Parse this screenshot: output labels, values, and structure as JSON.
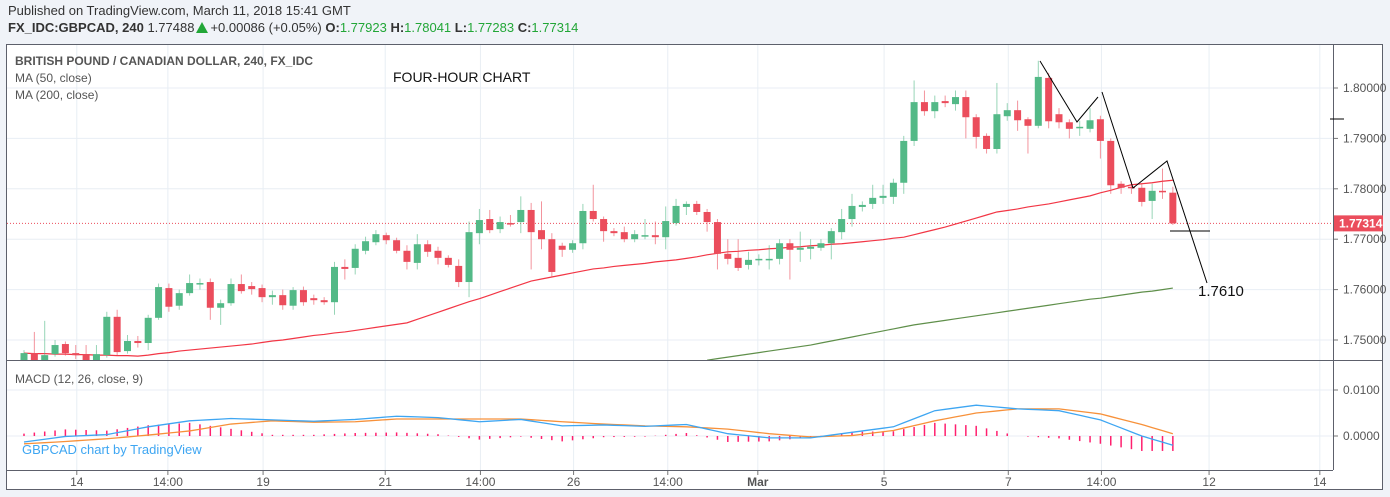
{
  "header": {
    "published": "Published on TradingView.com, March 11, 2018 15:41 GMT",
    "symbol": "FX_IDC:GBPCAD, 240",
    "last": "1.77488",
    "change": "+0.00086 (+0.05%)",
    "o_label": "O:",
    "o": "1.77923",
    "h_label": "H:",
    "h": "1.78041",
    "l_label": "L:",
    "l": "1.77283",
    "c_label": "C:",
    "c": "1.77314",
    "change_direction_icon": "triangle-up-icon"
  },
  "legend": {
    "title": "BRITISH POUND / CANADIAN DOLLAR, 240, FX_IDC",
    "ma50": "MA (50, close)",
    "ma200": "MA (200, close)",
    "macd": "MACD (12, 26, close, 9)"
  },
  "annotation": {
    "note": "FOUR-HOUR CHART",
    "target": "1.7610"
  },
  "watermark": "GBPCAD chart by TradingView",
  "colors": {
    "up": "#53b987",
    "down": "#eb4d5c",
    "ma50": "#f23645",
    "ma200": "#5f8f4a",
    "macd": "#3ea6f2",
    "signal": "#f7913a",
    "histogram": "#ff1f6e",
    "last_price": "#eb4d5c",
    "change": "#22a637"
  },
  "chart_data": {
    "type": "candlestick",
    "price_axis": {
      "ticks": [
        "1.80000",
        "1.79000",
        "1.78000",
        "1.77000",
        "1.76000",
        "1.75000"
      ],
      "range": [
        1.7455,
        1.8085
      ]
    },
    "last_price_label": "1.77314",
    "macd_axis": {
      "ticks": [
        "0.0100",
        "0.0000"
      ]
    },
    "x_ticks": [
      {
        "label": "14",
        "bold": false
      },
      {
        "label": "14:00",
        "bold": false
      },
      {
        "label": "19",
        "bold": false
      },
      {
        "label": "21",
        "bold": false
      },
      {
        "label": "14:00",
        "bold": false
      },
      {
        "label": "26",
        "bold": false
      },
      {
        "label": "14:00",
        "bold": false
      },
      {
        "label": "Mar",
        "bold": true
      },
      {
        "label": "5",
        "bold": false
      },
      {
        "label": "7",
        "bold": false
      },
      {
        "label": "14:00",
        "bold": false
      },
      {
        "label": "12",
        "bold": false
      },
      {
        "label": "14",
        "bold": false
      }
    ],
    "ohlc": [
      [
        1.746,
        1.748,
        1.7455,
        1.7474
      ],
      [
        1.7474,
        1.7516,
        1.7455,
        1.746
      ],
      [
        1.746,
        1.7538,
        1.7455,
        1.747
      ],
      [
        1.7472,
        1.75,
        1.7467,
        1.749
      ],
      [
        1.7492,
        1.7497,
        1.7469,
        1.7474
      ],
      [
        1.7474,
        1.749,
        1.7462,
        1.747
      ],
      [
        1.7472,
        1.749,
        1.7455,
        1.746
      ],
      [
        1.746,
        1.749,
        1.7455,
        1.7472
      ],
      [
        1.747,
        1.7556,
        1.7465,
        1.7546
      ],
      [
        1.7546,
        1.756,
        1.747,
        1.7476
      ],
      [
        1.7478,
        1.751,
        1.7473,
        1.7498
      ],
      [
        1.7498,
        1.7508,
        1.7485,
        1.7494
      ],
      [
        1.7494,
        1.755,
        1.748,
        1.7544
      ],
      [
        1.7544,
        1.7612,
        1.754,
        1.7605
      ],
      [
        1.7603,
        1.7612,
        1.7556,
        1.7566
      ],
      [
        1.7568,
        1.76,
        1.756,
        1.7593
      ],
      [
        1.7593,
        1.763,
        1.7588,
        1.7613
      ],
      [
        1.7611,
        1.7622,
        1.76,
        1.7613
      ],
      [
        1.7615,
        1.7622,
        1.754,
        1.7564
      ],
      [
        1.7564,
        1.758,
        1.753,
        1.7573
      ],
      [
        1.7573,
        1.7622,
        1.7568,
        1.7611
      ],
      [
        1.7611,
        1.763,
        1.7592,
        1.7597
      ],
      [
        1.7607,
        1.7615,
        1.759,
        1.7601
      ],
      [
        1.7603,
        1.761,
        1.7575,
        1.7585
      ],
      [
        1.7585,
        1.7598,
        1.757,
        1.7589
      ],
      [
        1.7589,
        1.76,
        1.756,
        1.7569
      ],
      [
        1.7568,
        1.7605,
        1.756,
        1.7599
      ],
      [
        1.7599,
        1.7606,
        1.7568,
        1.7575
      ],
      [
        1.7583,
        1.759,
        1.757,
        1.7579
      ],
      [
        1.7579,
        1.7585,
        1.757,
        1.7575
      ],
      [
        1.7575,
        1.7655,
        1.755,
        1.7645
      ],
      [
        1.7645,
        1.766,
        1.762,
        1.7641
      ],
      [
        1.7643,
        1.769,
        1.763,
        1.7681
      ],
      [
        1.7677,
        1.7705,
        1.767,
        1.7696
      ],
      [
        1.7694,
        1.7718,
        1.7688,
        1.771
      ],
      [
        1.7708,
        1.7713,
        1.769,
        1.7698
      ],
      [
        1.7698,
        1.7703,
        1.7672,
        1.7677
      ],
      [
        1.7677,
        1.7688,
        1.764,
        1.7655
      ],
      [
        1.7653,
        1.771,
        1.764,
        1.769
      ],
      [
        1.769,
        1.7698,
        1.7665,
        1.7675
      ],
      [
        1.7677,
        1.7685,
        1.765,
        1.7663
      ],
      [
        1.7663,
        1.7668,
        1.7644,
        1.7649
      ],
      [
        1.7647,
        1.766,
        1.7605,
        1.7615
      ],
      [
        1.7615,
        1.7735,
        1.7585,
        1.7714
      ],
      [
        1.7712,
        1.776,
        1.769,
        1.7738
      ],
      [
        1.774,
        1.7758,
        1.7712,
        1.7718
      ],
      [
        1.772,
        1.7745,
        1.7712,
        1.7734
      ],
      [
        1.7732,
        1.7748,
        1.7725,
        1.773
      ],
      [
        1.7734,
        1.7785,
        1.7712,
        1.7758
      ],
      [
        1.7758,
        1.7772,
        1.764,
        1.7714
      ],
      [
        1.7718,
        1.7775,
        1.768,
        1.77
      ],
      [
        1.77,
        1.7712,
        1.7625,
        1.7635
      ],
      [
        1.7687,
        1.7693,
        1.7665,
        1.7679
      ],
      [
        1.7679,
        1.7698,
        1.7673,
        1.7692
      ],
      [
        1.7692,
        1.777,
        1.768,
        1.7756
      ],
      [
        1.7756,
        1.7808,
        1.7735,
        1.774
      ],
      [
        1.774,
        1.7745,
        1.7695,
        1.7716
      ],
      [
        1.7716,
        1.7722,
        1.7706,
        1.7712
      ],
      [
        1.7714,
        1.7725,
        1.7694,
        1.77
      ],
      [
        1.77,
        1.7718,
        1.7694,
        1.771
      ],
      [
        1.7706,
        1.774,
        1.77,
        1.7708
      ],
      [
        1.7708,
        1.7735,
        1.769,
        1.7704
      ],
      [
        1.7704,
        1.7765,
        1.768,
        1.7736
      ],
      [
        1.7732,
        1.778,
        1.7727,
        1.7766
      ],
      [
        1.7764,
        1.7775,
        1.7748,
        1.777
      ],
      [
        1.777,
        1.7776,
        1.7748,
        1.7754
      ],
      [
        1.7754,
        1.776,
        1.7715,
        1.7734
      ],
      [
        1.7734,
        1.774,
        1.764,
        1.7671
      ],
      [
        1.7671,
        1.77,
        1.765,
        1.7661
      ],
      [
        1.7663,
        1.77,
        1.7637,
        1.7643
      ],
      [
        1.7649,
        1.7675,
        1.764,
        1.7659
      ],
      [
        1.7659,
        1.767,
        1.7648,
        1.7661
      ],
      [
        1.7659,
        1.7688,
        1.764,
        1.7661
      ],
      [
        1.7661,
        1.77,
        1.765,
        1.7692
      ],
      [
        1.7692,
        1.77,
        1.762,
        1.7679
      ],
      [
        1.7679,
        1.7715,
        1.7655,
        1.7683
      ],
      [
        1.7681,
        1.77,
        1.766,
        1.7685
      ],
      [
        1.7683,
        1.77,
        1.7677,
        1.7692
      ],
      [
        1.7692,
        1.7722,
        1.766,
        1.7716
      ],
      [
        1.7714,
        1.776,
        1.77,
        1.774
      ],
      [
        1.774,
        1.779,
        1.7725,
        1.7766
      ],
      [
        1.7764,
        1.7775,
        1.7755,
        1.7768
      ],
      [
        1.777,
        1.7808,
        1.776,
        1.7782
      ],
      [
        1.7782,
        1.7808,
        1.777,
        1.7786
      ],
      [
        1.7784,
        1.782,
        1.777,
        1.7812
      ],
      [
        1.7812,
        1.7905,
        1.779,
        1.7895
      ],
      [
        1.7895,
        1.8015,
        1.7885,
        1.7972
      ],
      [
        1.7972,
        1.7995,
        1.7945,
        1.7954
      ],
      [
        1.7954,
        1.7985,
        1.794,
        1.7972
      ],
      [
        1.7974,
        1.7985,
        1.7962,
        1.797
      ],
      [
        1.7968,
        1.7995,
        1.7955,
        1.7982
      ],
      [
        1.7982,
        1.7995,
        1.79,
        1.7942
      ],
      [
        1.7942,
        1.7948,
        1.788,
        1.7903
      ],
      [
        1.7905,
        1.791,
        1.787,
        1.7879
      ],
      [
        1.7879,
        1.801,
        1.787,
        1.7948
      ],
      [
        1.7944,
        1.797,
        1.7935,
        1.7956
      ],
      [
        1.7956,
        1.7975,
        1.7915,
        1.7936
      ],
      [
        1.7938,
        1.7942,
        1.787,
        1.7925
      ],
      [
        1.7925,
        1.8054,
        1.792,
        1.8022
      ],
      [
        1.802,
        1.803,
        1.792,
        1.7934
      ],
      [
        1.7948,
        1.796,
        1.792,
        1.7932
      ],
      [
        1.7932,
        1.7938,
        1.79,
        1.7919
      ],
      [
        1.7921,
        1.7935,
        1.7905,
        1.7923
      ],
      [
        1.7919,
        1.796,
        1.7912,
        1.7936
      ],
      [
        1.7938,
        1.7945,
        1.786,
        1.7895
      ],
      [
        1.7895,
        1.79,
        1.779,
        1.7807
      ],
      [
        1.781,
        1.7815,
        1.779,
        1.7802
      ],
      [
        1.7804,
        1.7815,
        1.779,
        1.7802
      ],
      [
        1.7802,
        1.781,
        1.7765,
        1.7774
      ],
      [
        1.7776,
        1.781,
        1.774,
        1.7796
      ],
      [
        1.7796,
        1.784,
        1.778,
        1.7794
      ],
      [
        1.77923,
        1.78041,
        1.77283,
        1.77314
      ]
    ],
    "ma50": [
      1.7474,
      1.7473,
      1.7473,
      1.7472,
      1.7472,
      1.7471,
      1.7471,
      1.747,
      1.747,
      1.7469,
      1.7469,
      1.7468,
      1.747,
      1.7473,
      1.7475,
      1.7478,
      1.748,
      1.7482,
      1.7484,
      1.7486,
      1.7488,
      1.749,
      1.7492,
      1.7495,
      1.7498,
      1.75,
      1.7503,
      1.7506,
      1.7509,
      1.7511,
      1.7514,
      1.7516,
      1.7519,
      1.7522,
      1.7525,
      1.7528,
      1.7531,
      1.7534,
      1.7541,
      1.7548,
      1.7555,
      1.7562,
      1.7569,
      1.7576,
      1.7582,
      1.7589,
      1.7596,
      1.7603,
      1.761,
      1.7617,
      1.7621,
      1.7625,
      1.7629,
      1.7633,
      1.7637,
      1.7641,
      1.7643,
      1.7646,
      1.7648,
      1.765,
      1.7652,
      1.7655,
      1.7657,
      1.7659,
      1.7662,
      1.7665,
      1.7669,
      1.7672,
      1.7675,
      1.7676,
      1.7678,
      1.7679,
      1.7681,
      1.7682,
      1.7684,
      1.7685,
      1.7687,
      1.7688,
      1.769,
      1.7691,
      1.7693,
      1.7695,
      1.7697,
      1.7699,
      1.7702,
      1.7704,
      1.7709,
      1.7714,
      1.7719,
      1.7724,
      1.773,
      1.7736,
      1.7742,
      1.7748,
      1.7754,
      1.7757,
      1.776,
      1.7764,
      1.7767,
      1.777,
      1.7774,
      1.7778,
      1.7782,
      1.7786,
      1.7792,
      1.7797,
      1.7803,
      1.7808,
      1.781,
      1.7812,
      1.7815,
      1.7817
    ],
    "ma200": [
      null,
      null,
      null,
      null,
      null,
      null,
      null,
      null,
      null,
      null,
      null,
      null,
      null,
      null,
      null,
      null,
      null,
      null,
      null,
      null,
      null,
      null,
      null,
      null,
      null,
      null,
      null,
      null,
      null,
      null,
      null,
      null,
      null,
      null,
      null,
      null,
      null,
      null,
      null,
      null,
      null,
      null,
      null,
      null,
      null,
      null,
      null,
      null,
      null,
      null,
      null,
      null,
      null,
      null,
      null,
      null,
      null,
      null,
      null,
      null,
      null,
      null,
      null,
      null,
      null,
      null,
      1.746,
      1.7463,
      1.7466,
      1.7469,
      1.7472,
      1.7475,
      1.7478,
      1.7481,
      1.7484,
      1.7487,
      1.749,
      1.7494,
      1.7498,
      1.7502,
      1.7506,
      1.751,
      1.7514,
      1.7518,
      1.7522,
      1.7526,
      1.753,
      1.7533,
      1.7536,
      1.7539,
      1.7542,
      1.7545,
      1.7548,
      1.7551,
      1.7554,
      1.7557,
      1.756,
      1.7563,
      1.7566,
      1.7569,
      1.7572,
      1.7575,
      1.7578,
      1.7581,
      1.7583,
      1.7586,
      1.7589,
      1.7592,
      1.7595,
      1.7597,
      1.76,
      1.7603
    ],
    "macd_points": [
      [
        1,
        -0.0013
      ],
      [
        5,
        -0.0001
      ],
      [
        9,
        0.0003
      ],
      [
        13,
        0.002
      ],
      [
        17,
        0.0033
      ],
      [
        21,
        0.0038
      ],
      [
        25,
        0.0035
      ],
      [
        29,
        0.0032
      ],
      [
        33,
        0.0036
      ],
      [
        37,
        0.0043
      ],
      [
        41,
        0.004
      ],
      [
        45,
        0.0031
      ],
      [
        49,
        0.0036
      ],
      [
        53,
        0.0022
      ],
      [
        57,
        0.0024
      ],
      [
        61,
        0.0021
      ],
      [
        65,
        0.0025
      ],
      [
        69,
        0.0005
      ],
      [
        73,
        -0.0004
      ],
      [
        77,
        -0.0004
      ],
      [
        81,
        0.0008
      ],
      [
        85,
        0.002
      ],
      [
        89,
        0.0055
      ],
      [
        93,
        0.0067
      ],
      [
        97,
        0.0059
      ],
      [
        101,
        0.0055
      ],
      [
        105,
        0.0035
      ],
      [
        109,
        0.0
      ],
      [
        112,
        -0.002
      ]
    ],
    "signal_points": [
      [
        1,
        -0.0017
      ],
      [
        5,
        -0.0012
      ],
      [
        9,
        -0.0006
      ],
      [
        13,
        0.0002
      ],
      [
        17,
        0.0011
      ],
      [
        21,
        0.0026
      ],
      [
        25,
        0.0033
      ],
      [
        29,
        0.003
      ],
      [
        33,
        0.0031
      ],
      [
        37,
        0.0037
      ],
      [
        41,
        0.0037
      ],
      [
        45,
        0.0037
      ],
      [
        49,
        0.0037
      ],
      [
        53,
        0.0031
      ],
      [
        57,
        0.0026
      ],
      [
        61,
        0.0022
      ],
      [
        65,
        0.002
      ],
      [
        69,
        0.0015
      ],
      [
        73,
        0.0005
      ],
      [
        77,
        -0.0002
      ],
      [
        81,
        0.0001
      ],
      [
        85,
        0.0012
      ],
      [
        89,
        0.0033
      ],
      [
        93,
        0.005
      ],
      [
        97,
        0.0059
      ],
      [
        101,
        0.0059
      ],
      [
        105,
        0.0048
      ],
      [
        109,
        0.0025
      ],
      [
        112,
        0.0005
      ]
    ],
    "grid": true
  }
}
